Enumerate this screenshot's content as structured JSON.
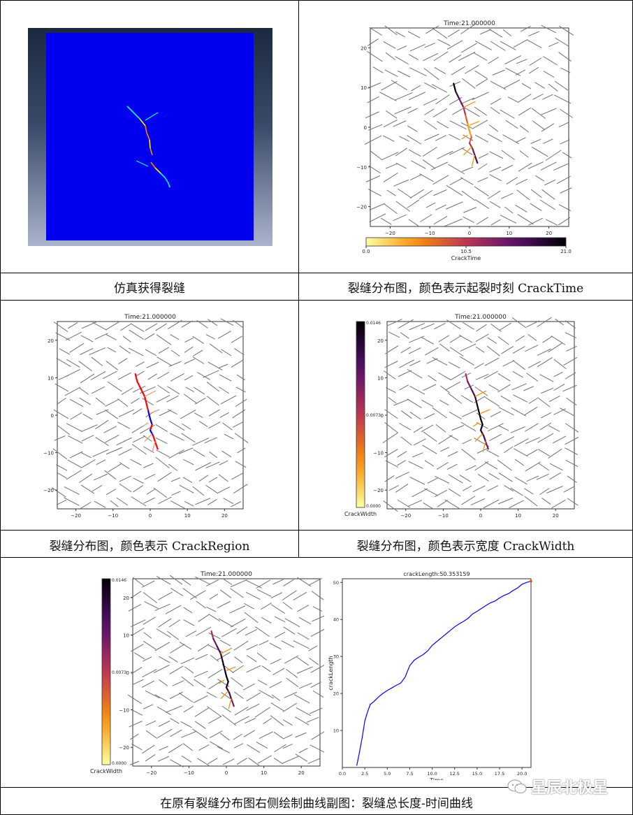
{
  "captions": {
    "sim": "仿真获得裂缝",
    "time": "裂缝分布图，颜色表示起裂时刻 CrackTime",
    "region": "裂缝分布图，颜色表示 CrackRegion",
    "width": "裂缝分布图，颜色表示宽度 CrackWidth",
    "curve": "在原有裂缝分布图右侧绘制曲线副图：裂缝总长度-时间曲线"
  },
  "watermark": "星辰北极星",
  "colors": {
    "grid_line": "#707070",
    "sim_background": "#0000ee",
    "curve": "#0000ff"
  },
  "chart_data": [
    {
      "id": "sim",
      "type": "other",
      "title": "",
      "note_colors": [
        "#00ffcc",
        "#ff8800",
        "#ffee00",
        "#0000ff"
      ]
    },
    {
      "id": "crack_time",
      "type": "scatter",
      "title": "Time:21.000000",
      "xticks": [
        -20,
        -10,
        0,
        10,
        20
      ],
      "yticks": [
        20,
        10,
        0,
        -10,
        -20
      ],
      "xlim": [
        -25,
        25
      ],
      "ylim": [
        -25,
        25
      ],
      "colorbar": {
        "label": "CrackTime",
        "orientation": "horizontal",
        "ticks": [
          "0.0",
          "10.5",
          "21.0"
        ],
        "min": 0,
        "max": 21
      }
    },
    {
      "id": "crack_region",
      "type": "scatter",
      "title": "Time:21.000000",
      "xticks": [
        -20,
        -10,
        0,
        10,
        20
      ],
      "yticks": [
        20,
        10,
        0,
        -10,
        -20
      ],
      "xlim": [
        -25,
        25
      ],
      "ylim": [
        -25,
        25
      ]
    },
    {
      "id": "crack_width",
      "type": "scatter",
      "title": "Time:21.000000",
      "xticks": [
        -20,
        -10,
        0,
        10,
        20
      ],
      "yticks": [
        20,
        10,
        0,
        -10,
        -20
      ],
      "xlim": [
        -25,
        25
      ],
      "ylim": [
        -25,
        25
      ],
      "colorbar": {
        "label": "CrackWidth",
        "orientation": "vertical",
        "ticks": [
          "0.0146",
          "0.0073",
          "0.0000"
        ],
        "min": 0,
        "max": 0.0146
      }
    },
    {
      "id": "crack_width_2",
      "type": "scatter",
      "title": "Time:21.000000",
      "xticks": [
        -20,
        -10,
        0,
        10,
        20
      ],
      "yticks": [
        20,
        10,
        0,
        -10,
        -20
      ],
      "xlim": [
        -25,
        25
      ],
      "ylim": [
        -25,
        25
      ],
      "colorbar": {
        "label": "CrackWidth",
        "orientation": "vertical",
        "ticks": [
          "0.0146",
          "0.0073",
          "0.0000"
        ],
        "min": 0,
        "max": 0.0146
      }
    },
    {
      "id": "crack_length",
      "type": "line",
      "title": "crackLength:50.353159",
      "xlabel": "Time",
      "ylabel": "crackLength",
      "xlim": [
        0,
        21
      ],
      "ylim": [
        0,
        51
      ],
      "xticks": [
        "0.0",
        "2.5",
        "5.0",
        "7.5",
        "10.0",
        "12.5",
        "15.0",
        "17.5",
        "20.0"
      ],
      "yticks": [
        "10",
        "20",
        "30",
        "40",
        "50"
      ],
      "series": [
        {
          "x": [
            1.6,
            1.9,
            2.2,
            2.5,
            2.8,
            3.1,
            3.5,
            4.0,
            4.5,
            5.0,
            5.5,
            6.0,
            6.5,
            7.0,
            7.5,
            8.0,
            8.5,
            9.0,
            9.5,
            10.0,
            10.5,
            11.0,
            11.5,
            12.0,
            12.5,
            13.0,
            13.5,
            14.0,
            14.5,
            15.0,
            15.5,
            16.0,
            16.5,
            17.0,
            17.5,
            18.0,
            18.5,
            19.0,
            19.5,
            20.0,
            20.5,
            21.0
          ],
          "y": [
            0.5,
            4.0,
            8.0,
            12.5,
            15.0,
            17.0,
            17.8,
            19.0,
            20.0,
            20.8,
            21.5,
            22.2,
            22.8,
            24.5,
            27.5,
            29.0,
            29.8,
            30.5,
            31.5,
            33.0,
            34.0,
            35.0,
            36.0,
            37.0,
            38.0,
            38.8,
            39.5,
            40.3,
            41.5,
            42.2,
            43.0,
            43.8,
            44.5,
            45.0,
            45.8,
            46.5,
            47.0,
            47.8,
            48.5,
            49.5,
            50.0,
            50.35
          ]
        }
      ]
    }
  ]
}
